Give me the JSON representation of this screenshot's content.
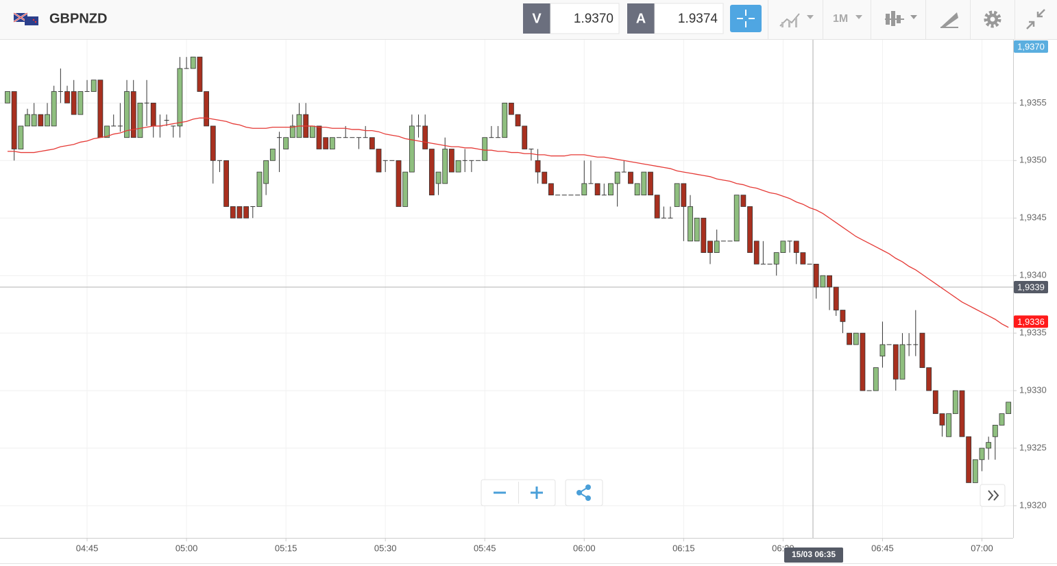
{
  "header": {
    "symbol": "GBPNZD",
    "bid_label": "V",
    "bid": "1.9370",
    "ask_label": "A",
    "ask": "1.9374",
    "timeframe": "1M"
  },
  "chart_data": {
    "type": "candlestick",
    "categories": [
      null,
      null,
      null,
      null,
      null,
      null,
      null,
      null,
      null,
      null,
      null,
      null,
      "04:45",
      null,
      null,
      null,
      null,
      null,
      null,
      null,
      null,
      null,
      null,
      null,
      null,
      null,
      null,
      "05:00",
      null,
      null,
      null,
      null,
      null,
      null,
      null,
      null,
      null,
      null,
      null,
      null,
      null,
      null,
      "05:15",
      null,
      null,
      null,
      null,
      null,
      null,
      null,
      null,
      null,
      null,
      null,
      null,
      null,
      null,
      "05:30",
      null,
      null,
      null,
      null,
      null,
      null,
      null,
      null,
      null,
      null,
      null,
      null,
      null,
      null,
      "05:45",
      null,
      null,
      null,
      null,
      null,
      null,
      null,
      null,
      null,
      null,
      null,
      null,
      null,
      null,
      "06:00",
      null,
      null,
      null,
      null,
      null,
      null,
      null,
      null,
      null,
      null,
      null,
      null,
      null,
      null,
      "06:15",
      null,
      null,
      null,
      null,
      null,
      null,
      null,
      null,
      null,
      null,
      null,
      null,
      null,
      null,
      "06:30",
      null,
      null,
      null,
      null,
      null,
      null,
      null,
      null,
      null,
      null,
      null,
      null,
      null,
      null,
      "06:45",
      null,
      null,
      null,
      null,
      null,
      null,
      null,
      null,
      null,
      null,
      null,
      null,
      null,
      null,
      "07:00",
      null,
      null,
      null,
      null
    ],
    "ohlc": [
      [
        1.9355,
        1.9356,
        1.9355,
        1.9356
      ],
      [
        1.9356,
        1.9356,
        1.935,
        1.9351
      ],
      [
        1.9351,
        1.9353,
        1.9351,
        1.9353
      ],
      [
        1.9353,
        1.93545,
        1.9353,
        1.9354
      ],
      [
        1.9353,
        1.9355,
        1.9353,
        1.9354
      ],
      [
        1.9354,
        1.9354,
        1.9353,
        1.9353
      ],
      [
        1.9353,
        1.9355,
        1.9353,
        1.9354
      ],
      [
        1.9353,
        1.93565,
        1.9353,
        1.9356
      ],
      [
        1.9356,
        1.9358,
        1.9355,
        1.9356
      ],
      [
        1.9356,
        1.93565,
        1.9355,
        1.9355
      ],
      [
        1.9356,
        1.9357,
        1.9354,
        1.9354
      ],
      [
        1.9354,
        1.9356,
        1.9354,
        1.9356
      ],
      [
        1.9356,
        1.9357,
        1.9356,
        1.9356
      ],
      [
        1.9356,
        1.9357,
        1.9356,
        1.9357
      ],
      [
        1.9357,
        1.9357,
        1.9352,
        1.9352
      ],
      [
        1.9352,
        1.9353,
        1.9352,
        1.9353
      ],
      [
        1.9353,
        1.9354,
        1.9353,
        1.9353
      ],
      [
        1.9353,
        1.9355,
        1.93525,
        1.9353
      ],
      [
        1.9352,
        1.9357,
        1.9352,
        1.9356
      ],
      [
        1.9356,
        1.9357,
        1.9352,
        1.9352
      ],
      [
        1.9352,
        1.9355,
        1.9352,
        1.9355
      ],
      [
        1.9355,
        1.9357,
        1.9353,
        1.9355
      ],
      [
        1.9355,
        1.9355,
        1.9352,
        1.9353
      ],
      [
        1.9353,
        1.9354,
        1.9352,
        1.9353
      ],
      [
        1.93535,
        1.9354,
        1.9353,
        1.93535
      ],
      [
        1.9353,
        1.9353,
        1.9352,
        1.9353
      ],
      [
        1.9353,
        1.9359,
        1.9352,
        1.9358
      ],
      [
        1.9358,
        1.9359,
        1.9358,
        1.9358
      ],
      [
        1.9358,
        1.9359,
        1.9358,
        1.9359
      ],
      [
        1.9359,
        1.9359,
        1.9356,
        1.9356
      ],
      [
        1.9356,
        1.9356,
        1.9353,
        1.9353
      ],
      [
        1.9353,
        1.9353,
        1.9348,
        1.935
      ],
      [
        1.935,
        1.935,
        1.9349,
        1.935
      ],
      [
        1.935,
        1.935,
        1.9346,
        1.9346
      ],
      [
        1.9346,
        1.9346,
        1.9345,
        1.9345
      ],
      [
        1.9346,
        1.9346,
        1.9345,
        1.9345
      ],
      [
        1.9346,
        1.9346,
        1.9345,
        1.9345
      ],
      [
        1.9346,
        1.9346,
        1.9345,
        1.9346
      ],
      [
        1.9346,
        1.9349,
        1.9346,
        1.9349
      ],
      [
        1.9348,
        1.935,
        1.9347,
        1.935
      ],
      [
        1.935,
        1.9351,
        1.935,
        1.9351
      ],
      [
        1.9352,
        1.93525,
        1.9349,
        1.9352
      ],
      [
        1.9351,
        1.9352,
        1.9351,
        1.9352
      ],
      [
        1.9352,
        1.9354,
        1.9352,
        1.9353
      ],
      [
        1.9352,
        1.9355,
        1.9352,
        1.9354
      ],
      [
        1.9354,
        1.9355,
        1.9352,
        1.9352
      ],
      [
        1.9352,
        1.9353,
        1.9352,
        1.9353
      ],
      [
        1.9353,
        1.9353,
        1.9351,
        1.9351
      ],
      [
        1.9352,
        1.9352,
        1.9351,
        1.9351
      ],
      [
        1.9351,
        1.9352,
        1.9351,
        1.9352
      ],
      [
        1.9352,
        1.9352,
        1.9352,
        1.9352
      ],
      [
        1.9352,
        1.9353,
        1.9352,
        1.9352
      ],
      [
        1.9352,
        1.9352,
        1.9352,
        1.9352
      ],
      [
        1.9352,
        1.9352,
        1.9351,
        1.9352
      ],
      [
        1.9352,
        1.9353,
        1.9352,
        1.9352
      ],
      [
        1.9352,
        1.9352,
        1.9351,
        1.9351
      ],
      [
        1.9351,
        1.9351,
        1.9349,
        1.9349
      ],
      [
        1.935,
        1.935,
        1.9349,
        1.935
      ],
      [
        1.935,
        1.935,
        1.935,
        1.935
      ],
      [
        1.935,
        1.935,
        1.9346,
        1.9346
      ],
      [
        1.9346,
        1.9349,
        1.9346,
        1.9349
      ],
      [
        1.9349,
        1.9354,
        1.9349,
        1.9353
      ],
      [
        1.9353,
        1.9354,
        1.9352,
        1.9353
      ],
      [
        1.9353,
        1.9354,
        1.9351,
        1.9351
      ],
      [
        1.9351,
        1.9351,
        1.9347,
        1.9347
      ],
      [
        1.9348,
        1.9349,
        1.9347,
        1.9349
      ],
      [
        1.9348,
        1.9352,
        1.9348,
        1.9351
      ],
      [
        1.9351,
        1.9351,
        1.9349,
        1.9349
      ],
      [
        1.9349,
        1.935,
        1.9349,
        1.935
      ],
      [
        1.935,
        1.9351,
        1.9349,
        1.935
      ],
      [
        1.935,
        1.935,
        1.9349,
        1.935
      ],
      [
        1.935,
        1.935,
        1.935,
        1.935
      ],
      [
        1.935,
        1.9352,
        1.935,
        1.9352
      ],
      [
        1.9352,
        1.9353,
        1.9352,
        1.9352
      ],
      [
        1.9352,
        1.9353,
        1.9352,
        1.9352
      ],
      [
        1.9352,
        1.9355,
        1.9352,
        1.9355
      ],
      [
        1.9355,
        1.9355,
        1.9354,
        1.9354
      ],
      [
        1.9354,
        1.9354,
        1.9353,
        1.9353
      ],
      [
        1.9353,
        1.9353,
        1.9351,
        1.9351
      ],
      [
        1.9351,
        1.9351,
        1.935,
        1.9351
      ],
      [
        1.935,
        1.9351,
        1.9348,
        1.9349
      ],
      [
        1.9349,
        1.9349,
        1.9348,
        1.9348
      ],
      [
        1.9348,
        1.9348,
        1.9347,
        1.9347
      ],
      [
        1.9347,
        1.9347,
        1.9347,
        1.9347
      ],
      [
        1.9347,
        1.9347,
        1.9347,
        1.9347
      ],
      [
        1.9347,
        1.9347,
        1.9347,
        1.9347
      ],
      [
        1.9347,
        1.9347,
        1.9347,
        1.9347
      ],
      [
        1.9347,
        1.935,
        1.9347,
        1.9348
      ],
      [
        1.9348,
        1.935,
        1.9348,
        1.9348
      ],
      [
        1.9348,
        1.9348,
        1.9347,
        1.9347
      ],
      [
        1.9347,
        1.9348,
        1.9347,
        1.9347
      ],
      [
        1.9347,
        1.9348,
        1.9347,
        1.9348
      ],
      [
        1.9348,
        1.9349,
        1.9346,
        1.9349
      ],
      [
        1.9349,
        1.935,
        1.9349,
        1.9349
      ],
      [
        1.9349,
        1.9349,
        1.9348,
        1.9348
      ],
      [
        1.9347,
        1.9348,
        1.9347,
        1.9348
      ],
      [
        1.9347,
        1.9349,
        1.9347,
        1.9349
      ],
      [
        1.9349,
        1.9349,
        1.9347,
        1.9347
      ],
      [
        1.9347,
        1.9347,
        1.9345,
        1.9345
      ],
      [
        1.9345,
        1.9346,
        1.9345,
        1.9345
      ],
      [
        1.9345,
        1.9346,
        1.9345,
        1.9345
      ],
      [
        1.9346,
        1.9348,
        1.9346,
        1.9348
      ],
      [
        1.9348,
        1.9348,
        1.9343,
        1.9346
      ],
      [
        1.9343,
        1.9347,
        1.9343,
        1.9346
      ],
      [
        1.9343,
        1.9345,
        1.9343,
        1.9345
      ],
      [
        1.9345,
        1.9345,
        1.9342,
        1.9342
      ],
      [
        1.9343,
        1.9343,
        1.9341,
        1.9342
      ],
      [
        1.9342,
        1.9344,
        1.9342,
        1.9343
      ],
      [
        1.9343,
        1.9343,
        1.9343,
        1.9343
      ],
      [
        1.9343,
        1.9343,
        1.9343,
        1.9343
      ],
      [
        1.9343,
        1.9347,
        1.9343,
        1.9347
      ],
      [
        1.9347,
        1.9347,
        1.9346,
        1.9346
      ],
      [
        1.9346,
        1.9346,
        1.9342,
        1.9342
      ],
      [
        1.9343,
        1.9343,
        1.9341,
        1.9341
      ],
      [
        1.9341,
        1.9343,
        1.9341,
        1.9341
      ],
      [
        1.9341,
        1.9341,
        1.9341,
        1.9341
      ],
      [
        1.9341,
        1.9342,
        1.934,
        1.9342
      ],
      [
        1.9342,
        1.9343,
        1.9342,
        1.9343
      ],
      [
        1.9343,
        1.9343,
        1.9342,
        1.9343
      ],
      [
        1.9343,
        1.9343,
        1.9341,
        1.9342
      ],
      [
        1.9342,
        1.9342,
        1.9341,
        1.9341
      ],
      [
        1.9341,
        1.9341,
        1.9341,
        1.9341
      ],
      [
        1.9341,
        1.9341,
        1.9338,
        1.9339
      ],
      [
        1.9339,
        1.934,
        1.9339,
        1.934
      ],
      [
        1.934,
        1.934,
        1.9337,
        1.9339
      ],
      [
        1.9339,
        1.9339,
        1.93365,
        1.9337
      ],
      [
        1.9337,
        1.9337,
        1.9335,
        1.9336
      ],
      [
        1.9335,
        1.9335,
        1.9334,
        1.9334
      ],
      [
        1.9334,
        1.9335,
        1.9334,
        1.9335
      ],
      [
        1.9335,
        1.9335,
        1.933,
        1.933
      ],
      [
        1.933,
        1.933,
        1.933,
        1.933
      ],
      [
        1.933,
        1.9332,
        1.933,
        1.9332
      ],
      [
        1.9333,
        1.9336,
        1.9332,
        1.9334
      ],
      [
        1.9334,
        1.9334,
        1.9334,
        1.9334
      ],
      [
        1.9334,
        1.9334,
        1.933,
        1.9331
      ],
      [
        1.9331,
        1.9335,
        1.9331,
        1.9334
      ],
      [
        1.9334,
        1.9335,
        1.9333,
        1.9334
      ],
      [
        1.9334,
        1.9337,
        1.9333,
        1.9334
      ],
      [
        1.9335,
        1.9335,
        1.9332,
        1.9332
      ],
      [
        1.9332,
        1.9332,
        1.933,
        1.933
      ],
      [
        1.933,
        1.933,
        1.9328,
        1.9328
      ],
      [
        1.9328,
        1.9328,
        1.9326,
        1.9327
      ],
      [
        1.9326,
        1.9328,
        1.9326,
        1.9328
      ],
      [
        1.9328,
        1.933,
        1.9328,
        1.933
      ],
      [
        1.933,
        1.933,
        1.9326,
        1.9326
      ],
      [
        1.9326,
        1.9326,
        1.9322,
        1.9322
      ],
      [
        1.9322,
        1.9324,
        1.9322,
        1.9324
      ],
      [
        1.9324,
        1.9325,
        1.9323,
        1.9325
      ],
      [
        1.9325,
        1.9326,
        1.9324,
        1.93255
      ],
      [
        1.9326,
        1.9327,
        1.9324,
        1.9327
      ],
      [
        1.9327,
        1.9328,
        1.9327,
        1.9328
      ],
      [
        1.9328,
        1.9329,
        1.9328,
        1.9329
      ]
    ],
    "up_color": "#8fbf7f",
    "down_color": "#a8301f",
    "series": [
      {
        "color": "#e53935",
        "values": [
          1.93508,
          1.93508,
          1.93507,
          1.93507,
          1.93507,
          1.93508,
          1.93509,
          1.9351,
          1.93512,
          1.93513,
          1.93514,
          1.93516,
          1.93517,
          1.93519,
          1.9352,
          1.93521,
          1.93523,
          1.93524,
          1.93526,
          1.93527,
          1.93528,
          1.93529,
          1.9353,
          1.9353,
          1.93531,
          1.93532,
          1.93533,
          1.93534,
          1.93536,
          1.93537,
          1.93537,
          1.93536,
          1.93535,
          1.93534,
          1.93532,
          1.93531,
          1.93529,
          1.93528,
          1.93528,
          1.93528,
          1.93529,
          1.93529,
          1.93529,
          1.93529,
          1.9353,
          1.9353,
          1.9353,
          1.93529,
          1.93529,
          1.93528,
          1.93528,
          1.93528,
          1.93527,
          1.93527,
          1.93526,
          1.93526,
          1.93525,
          1.93523,
          1.93522,
          1.93521,
          1.93519,
          1.93518,
          1.93517,
          1.93516,
          1.93515,
          1.93514,
          1.93513,
          1.93512,
          1.93512,
          1.93511,
          1.93511,
          1.9351,
          1.93509,
          1.93509,
          1.93508,
          1.93508,
          1.93507,
          1.93507,
          1.93506,
          1.93506,
          1.93505,
          1.93505,
          1.93504,
          1.93504,
          1.93504,
          1.93505,
          1.93505,
          1.93505,
          1.93504,
          1.93503,
          1.93503,
          1.93502,
          1.93501,
          1.935,
          1.93499,
          1.93498,
          1.93497,
          1.93496,
          1.93495,
          1.93494,
          1.93493,
          1.93491,
          1.9349,
          1.93489,
          1.93488,
          1.93487,
          1.93486,
          1.93484,
          1.93483,
          1.93482,
          1.9348,
          1.93479,
          1.93477,
          1.93476,
          1.93474,
          1.93472,
          1.93471,
          1.93469,
          1.93467,
          1.93464,
          1.93462,
          1.93459,
          1.93457,
          1.93454,
          1.9345,
          1.93446,
          1.93442,
          1.93438,
          1.93434,
          1.93431,
          1.93428,
          1.93425,
          1.93422,
          1.93419,
          1.93415,
          1.93412,
          1.93408,
          1.93405,
          1.93401,
          1.93397,
          1.93393,
          1.93389,
          1.93385,
          1.93381,
          1.93377,
          1.93374,
          1.93371,
          1.93368,
          1.93365,
          1.93362,
          1.93358,
          1.93355
        ]
      }
    ],
    "ylim": [
      1.93172,
      1.93605
    ],
    "yticks": [
      {
        "value": 1.932,
        "label": "1,9320"
      },
      {
        "value": 1.9325,
        "label": "1,9325"
      },
      {
        "value": 1.933,
        "label": "1,9330"
      },
      {
        "value": 1.9335,
        "label": "1,9335"
      },
      {
        "value": 1.934,
        "label": "1,9340"
      },
      {
        "value": 1.9345,
        "label": "1,9345"
      },
      {
        "value": 1.935,
        "label": "1,9350"
      },
      {
        "value": 1.9355,
        "label": "1,9355"
      }
    ],
    "grid": true,
    "price_markers": [
      {
        "value": 1.937,
        "label": "1,9370",
        "color": "#5aaedf"
      },
      {
        "value": 1.9339,
        "label": "1,9339",
        "color": "#555a66"
      },
      {
        "value": 1.9336,
        "label": "1,9336",
        "color": "#ff1a1a"
      }
    ],
    "crosshair_label": "15/03 06:35"
  }
}
